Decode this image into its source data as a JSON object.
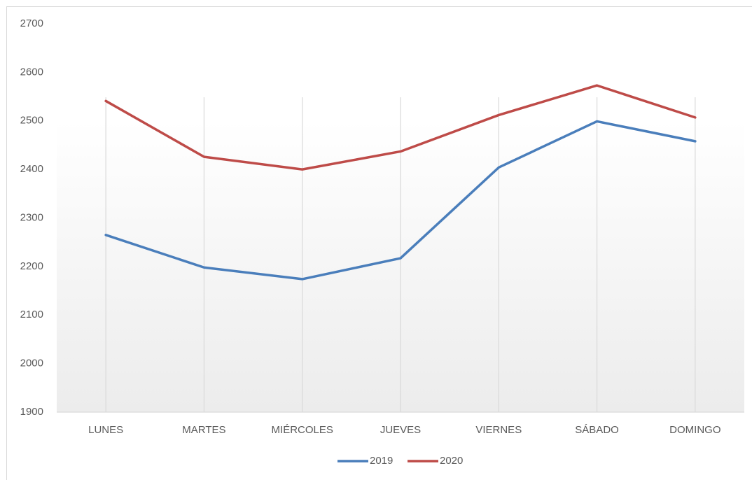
{
  "chart_data": {
    "type": "line",
    "categories": [
      "LUNES",
      "MARTES",
      "MIÉRCOLES",
      "JUEVES",
      "VIERNES",
      "SÁBADO",
      "DOMINGO"
    ],
    "series": [
      {
        "name": "2019",
        "color": "#4a7ebb",
        "values": [
          2265,
          2198,
          2174,
          2217,
          2404,
          2499,
          2458
        ]
      },
      {
        "name": "2020",
        "color": "#be4b48",
        "values": [
          2541,
          2426,
          2400,
          2437,
          2512,
          2573,
          2507
        ]
      }
    ],
    "ylim": [
      1900,
      2700
    ],
    "yticks": [
      1900,
      2000,
      2100,
      2200,
      2300,
      2400,
      2500,
      2600,
      2700
    ],
    "grid": true,
    "legend": "bottom"
  }
}
